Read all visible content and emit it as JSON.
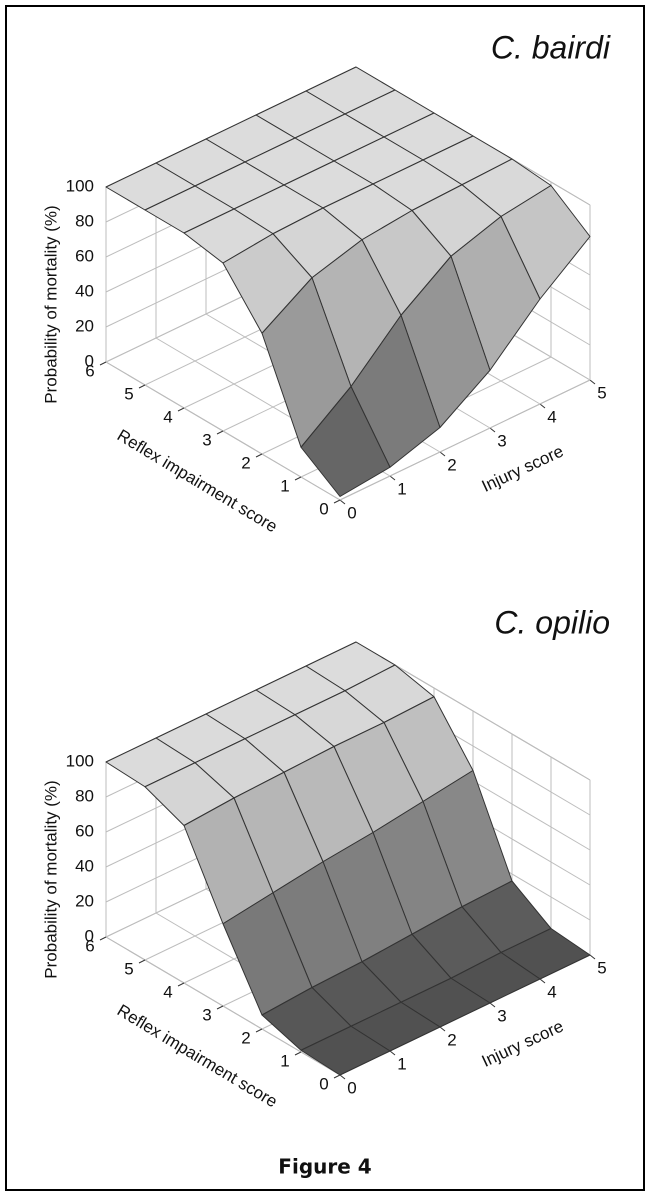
{
  "chart_data": [
    {
      "type": "surface",
      "title": "C. bairdi",
      "xlabel": "Injury score",
      "ylabel": "Reflex impairment score",
      "zlabel": "Probability of mortality (%)",
      "xlim": [
        0,
        5
      ],
      "xticks": [
        0,
        1,
        2,
        3,
        4,
        5
      ],
      "ylim": [
        0,
        6
      ],
      "yticks": [
        0,
        1,
        2,
        3,
        4,
        5,
        6
      ],
      "zlim": [
        0,
        100
      ],
      "zticks": [
        0,
        20,
        40,
        60,
        80,
        100
      ],
      "grid": true,
      "color": "#b0b0b0",
      "values": [
        [
          2,
          5,
          14,
          33,
          60,
          82
        ],
        [
          17,
          38,
          65,
          85,
          94,
          98
        ],
        [
          69,
          87,
          95,
          98,
          99,
          100
        ],
        [
          96,
          99,
          100,
          100,
          100,
          100
        ],
        [
          100,
          100,
          100,
          100,
          100,
          100
        ],
        [
          100,
          100,
          100,
          100,
          100,
          100
        ],
        [
          100,
          100,
          100,
          100,
          100,
          100
        ]
      ]
    },
    {
      "type": "surface",
      "title": "C. opilio",
      "xlabel": "Injury score",
      "ylabel": "Reflex impairment score",
      "zlabel": "Probability of mortality (%)",
      "xlim": [
        0,
        5
      ],
      "xticks": [
        0,
        1,
        2,
        3,
        4,
        5
      ],
      "ylim": [
        0,
        6
      ],
      "yticks": [
        0,
        1,
        2,
        3,
        4,
        5,
        6
      ],
      "zlim": [
        0,
        100
      ],
      "zticks": [
        0,
        20,
        40,
        60,
        80,
        100
      ],
      "grid": true,
      "color": "#b0b0b0",
      "values": [
        [
          0,
          0,
          0,
          0,
          0,
          0
        ],
        [
          1,
          1,
          1,
          1,
          2,
          2
        ],
        [
          8,
          10,
          11,
          13,
          15,
          16
        ],
        [
          47,
          51,
          55,
          58,
          62,
          66
        ],
        [
          90,
          92,
          93,
          94,
          94,
          95
        ],
        [
          99,
          99,
          99,
          99,
          99,
          100
        ],
        [
          100,
          100,
          100,
          100,
          100,
          100
        ]
      ]
    }
  ],
  "figure_caption": "Figure 4"
}
